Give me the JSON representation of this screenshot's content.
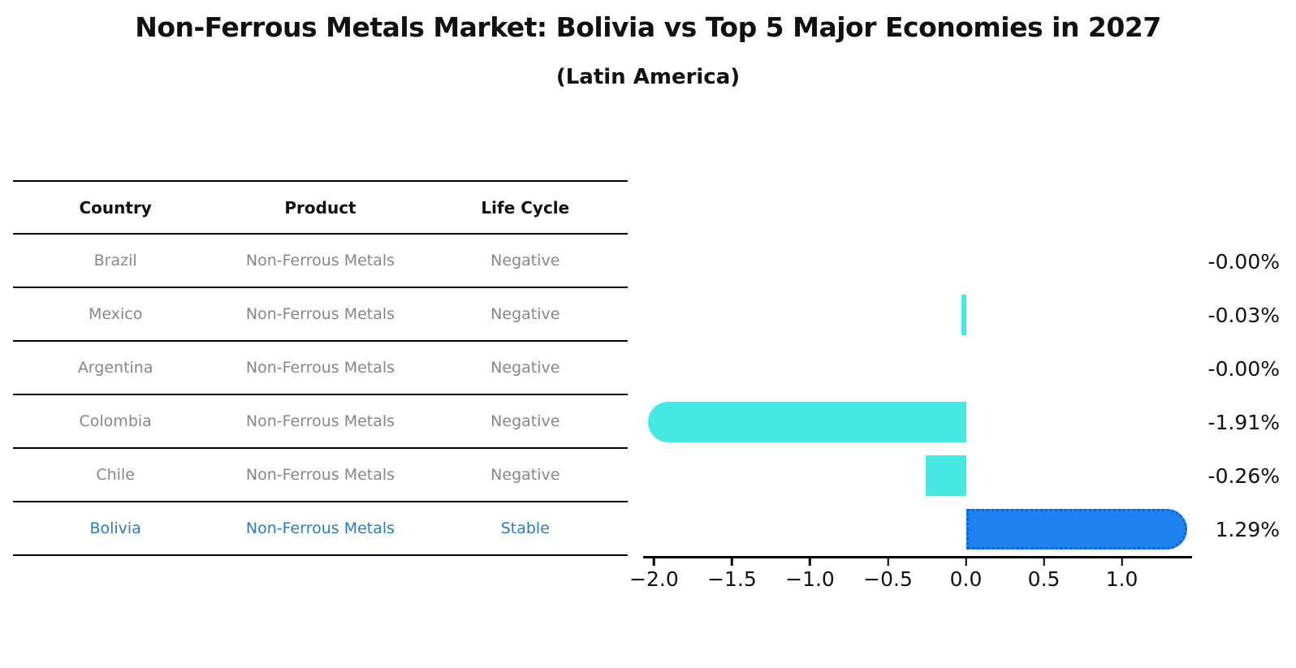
{
  "header": {
    "title": "Non-Ferrous Metals Market: Bolivia vs Top 5 Major Economies in 2027",
    "subtitle": "(Latin America)"
  },
  "table": {
    "columns": [
      "Country",
      "Product",
      "Life Cycle"
    ],
    "rows": [
      {
        "country": "Brazil",
        "product": "Non-Ferrous Metals",
        "life_cycle": "Negative"
      },
      {
        "country": "Mexico",
        "product": "Non-Ferrous Metals",
        "life_cycle": "Negative"
      },
      {
        "country": "Argentina",
        "product": "Non-Ferrous Metals",
        "life_cycle": "Negative"
      },
      {
        "country": "Colombia",
        "product": "Non-Ferrous Metals",
        "life_cycle": "Negative"
      },
      {
        "country": "Chile",
        "product": "Non-Ferrous Metals",
        "life_cycle": "Negative"
      },
      {
        "country": "Bolivia",
        "product": "Non-Ferrous Metals",
        "life_cycle": "Stable"
      }
    ],
    "highlight_row": "Bolivia"
  },
  "chart_data": {
    "type": "bar",
    "orientation": "horizontal",
    "categories": [
      "Brazil",
      "Mexico",
      "Argentina",
      "Colombia",
      "Chile",
      "Bolivia"
    ],
    "values": [
      -0.0,
      -0.03,
      -0.0,
      -1.91,
      -0.26,
      1.29
    ],
    "value_labels": [
      "-0.00%",
      "-0.03%",
      "-0.00%",
      "-1.91%",
      "-0.26%",
      "1.29%"
    ],
    "x_ticks": [
      "−2.0",
      "−1.5",
      "−1.0",
      "−0.5",
      "0.0",
      "0.5",
      "1.0"
    ],
    "x_tick_values": [
      -2.0,
      -1.5,
      -1.0,
      -0.5,
      0.0,
      0.5,
      1.0
    ],
    "xlim": [
      -2.07,
      1.45
    ],
    "grid": false,
    "legend": null,
    "highlight_index": 5,
    "bar_color": "#46e8e1",
    "highlight_bar_color": "#1e82f0",
    "highlight_border_color": "#0e63cf"
  },
  "colors": {
    "title_text": "#111111",
    "table_text": "#878787",
    "highlight_text": "#2b7bc0",
    "axis": "#000000"
  }
}
